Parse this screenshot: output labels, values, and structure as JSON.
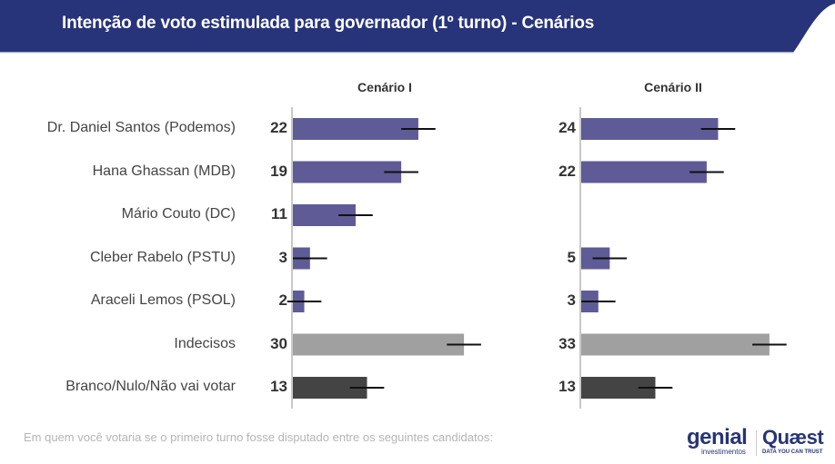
{
  "header": {
    "title": "Intenção de voto estimulada para governador (1º turno) - Cenários",
    "bg_color": "#27347a"
  },
  "chart_data": {
    "type": "bar",
    "orientation": "horizontal",
    "title": "Intenção de voto estimulada para governador (1º turno) - Cenários",
    "categories": [
      "Dr. Daniel Santos (Podemos)",
      "Hana Ghassan (MDB)",
      "Mário Couto (DC)",
      "Cleber Rabelo (PSTU)",
      "Araceli Lemos (PSOL)",
      "Indecisos",
      "Branco/Nulo/Não vai votar"
    ],
    "category_colors": [
      "#5f5b96",
      "#5f5b96",
      "#5f5b96",
      "#5f5b96",
      "#5f5b96",
      "#a0a0a0",
      "#444444"
    ],
    "error_margin": 3,
    "xlim": [
      0,
      36
    ],
    "series": [
      {
        "name": "Cenário I",
        "values": [
          22,
          19,
          11,
          3,
          2,
          30,
          13
        ]
      },
      {
        "name": "Cenário II",
        "values": [
          24,
          22,
          null,
          5,
          3,
          33,
          13
        ]
      }
    ],
    "xlabel": "",
    "ylabel": "",
    "grid": false,
    "legend": "none"
  },
  "footer": {
    "note": "Em quem você votaria se o primeiro turno fosse disputado entre os seguintes candidatos:",
    "logo_genial": "genial",
    "logo_genial_sub": "investimentos",
    "logo_quaest": "Quæst",
    "logo_quaest_sub": "DATA YOU CAN TRUST"
  }
}
